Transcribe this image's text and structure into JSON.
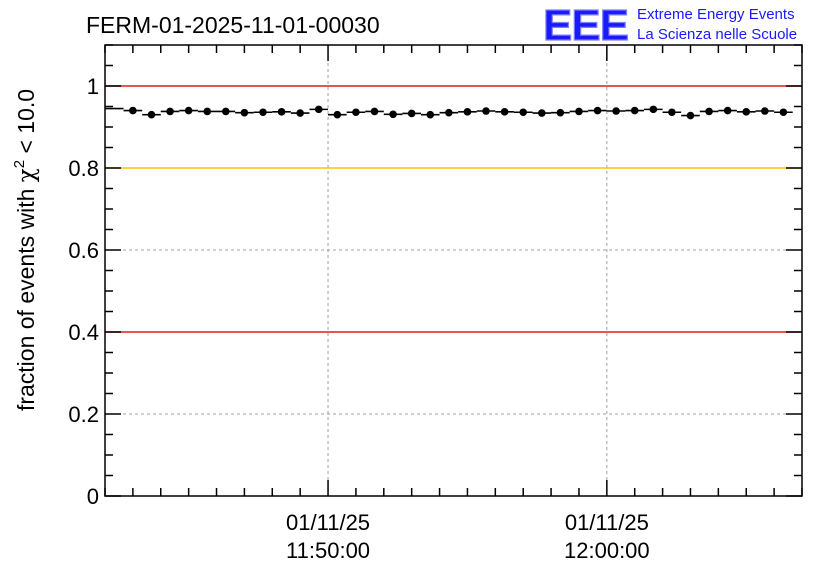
{
  "chart_data": {
    "type": "scatter",
    "title": "FERM-01-2025-11-01-00030",
    "ylabel_prefix": "fraction of events with ",
    "ylabel_symbol": "χ",
    "ylabel_superscript": "2",
    "ylabel_suffix": " < 10.0",
    "xlabel": "",
    "ylim": [
      0,
      1.1
    ],
    "y_ticks": [
      "0",
      "0.2",
      "0.4",
      "0.6",
      "0.8",
      "1"
    ],
    "y_tick_values": [
      0,
      0.2,
      0.4,
      0.6,
      0.8,
      1.0
    ],
    "x_time_range_minutes": [
      0,
      25
    ],
    "x_ticks": [
      {
        "minute": 8,
        "date": "01/11/25",
        "time": "11:50:00"
      },
      {
        "minute": 18,
        "date": "01/11/25",
        "time": "12:00:00"
      }
    ],
    "reference_lines": [
      {
        "y": 1.0,
        "color": "#e41a1c"
      },
      {
        "y": 0.8,
        "color": "#ffc000"
      },
      {
        "y": 0.4,
        "color": "#e41a1c"
      }
    ],
    "bin_width_minutes": 0.667,
    "x": [
      0.333,
      1.0,
      1.667,
      2.333,
      3.0,
      3.667,
      4.333,
      5.0,
      5.667,
      6.333,
      7.0,
      7.667,
      8.333,
      9.0,
      9.667,
      10.333,
      11.0,
      11.667,
      12.333,
      13.0,
      13.667,
      14.333,
      15.0,
      15.667,
      16.333,
      17.0,
      17.667,
      18.333,
      19.0,
      19.667,
      20.333,
      21.0,
      21.667,
      22.333,
      23.0,
      23.667,
      24.333
    ],
    "values": [
      0.945,
      0.94,
      0.93,
      0.938,
      0.94,
      0.938,
      0.938,
      0.935,
      0.936,
      0.937,
      0.934,
      0.943,
      0.93,
      0.936,
      0.938,
      0.931,
      0.933,
      0.93,
      0.935,
      0.937,
      0.939,
      0.937,
      0.936,
      0.934,
      0.935,
      0.938,
      0.94,
      0.939,
      0.94,
      0.943,
      0.936,
      0.928,
      0.938,
      0.94,
      0.937,
      0.939,
      0.936
    ],
    "point_visible": [
      false,
      true,
      true,
      true,
      true,
      true,
      true,
      true,
      true,
      true,
      true,
      true,
      true,
      true,
      true,
      true,
      true,
      true,
      true,
      true,
      true,
      true,
      true,
      true,
      true,
      true,
      true,
      true,
      true,
      true,
      true,
      true,
      true,
      true,
      true,
      true,
      true
    ]
  },
  "logo": {
    "mark": "EEE",
    "line1": "Extreme Energy Events",
    "line2": "La Scienza nelle Scuole",
    "color": "#1a1aff"
  },
  "colors": {
    "axis": "#000000",
    "grid": "#a0a0a0",
    "marker": "#000000"
  }
}
